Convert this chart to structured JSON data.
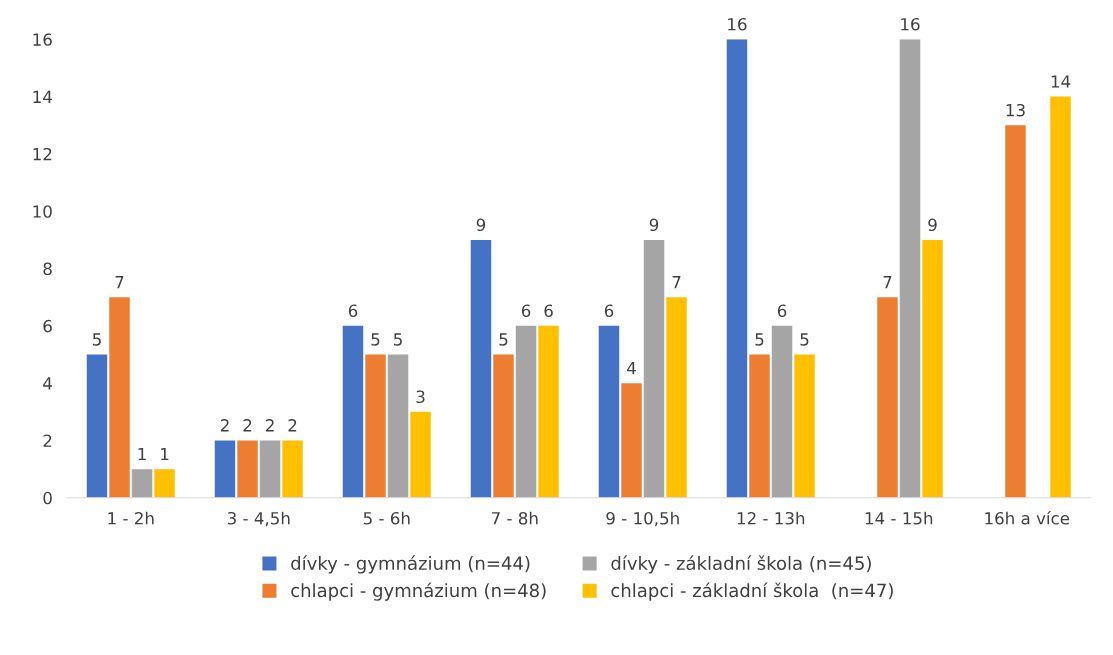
{
  "chart_data": {
    "type": "bar",
    "categories": [
      "1 - 2h",
      "3 - 4,5h",
      "5 - 6h",
      "7 - 8h",
      "9 - 10,5h",
      "12 - 13h",
      "14 - 15h",
      "16h a více"
    ],
    "series": [
      {
        "name": "dívky - gymnázium (n=44)",
        "color": "#4472c4",
        "values": [
          5,
          2,
          6,
          9,
          6,
          16,
          null,
          null
        ]
      },
      {
        "name": "chlapci - gymnázium (n=48)",
        "color": "#ed7d31",
        "values": [
          7,
          2,
          5,
          5,
          4,
          5,
          7,
          13
        ]
      },
      {
        "name": "dívky - základní škola (n=45)",
        "color": "#a5a5a5",
        "values": [
          1,
          2,
          5,
          6,
          9,
          6,
          16,
          null
        ]
      },
      {
        "name": "chlapci - základní škola  (n=47)",
        "color": "#ffc000",
        "values": [
          1,
          2,
          3,
          6,
          7,
          5,
          9,
          14
        ]
      }
    ],
    "ylim": [
      0,
      16
    ],
    "yticks": [
      0,
      2,
      4,
      6,
      8,
      10,
      12,
      14,
      16
    ],
    "grid": false,
    "legend": "bottom",
    "data_labels": true
  }
}
